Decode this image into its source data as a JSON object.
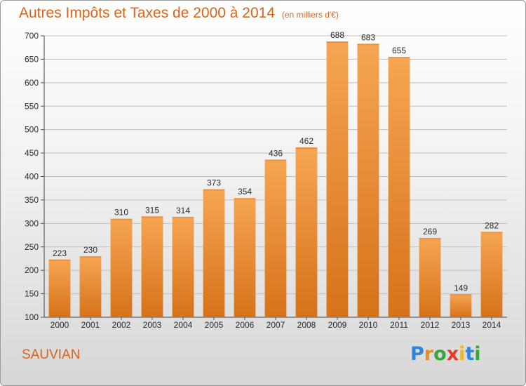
{
  "page": {
    "title": "Autres Impôts et Taxes de 2000 à 2014",
    "subtitle": "(en milliers d'€)",
    "location": "SAUVIAN",
    "logo": {
      "text": "Proxiti",
      "letter_colors": [
        "#2f86d6",
        "#f08a1c",
        "#3aa33c",
        "#e63a2c",
        "#f0b81c",
        "#2f86d6",
        "#3aa33c"
      ]
    }
  },
  "colors": {
    "bar_light": "#f6a552",
    "bar_dark": "#d6721a",
    "title": "#d9641a",
    "grid": "#bfbfbf"
  },
  "chart_data": {
    "type": "bar",
    "title": "Autres Impôts et Taxes de 2000 à 2014",
    "subtitle": "(en milliers d'€)",
    "categories": [
      "2000",
      "2001",
      "2002",
      "2003",
      "2004",
      "2005",
      "2006",
      "2007",
      "2008",
      "2009",
      "2010",
      "2011",
      "2012",
      "2013",
      "2014"
    ],
    "values": [
      223,
      230,
      310,
      315,
      314,
      373,
      354,
      436,
      462,
      688,
      683,
      655,
      269,
      149,
      282
    ],
    "ylim": [
      100,
      700
    ],
    "yticks": [
      100,
      150,
      200,
      250,
      300,
      350,
      400,
      450,
      500,
      550,
      600,
      650,
      700
    ],
    "grid": true,
    "data_labels": true
  }
}
